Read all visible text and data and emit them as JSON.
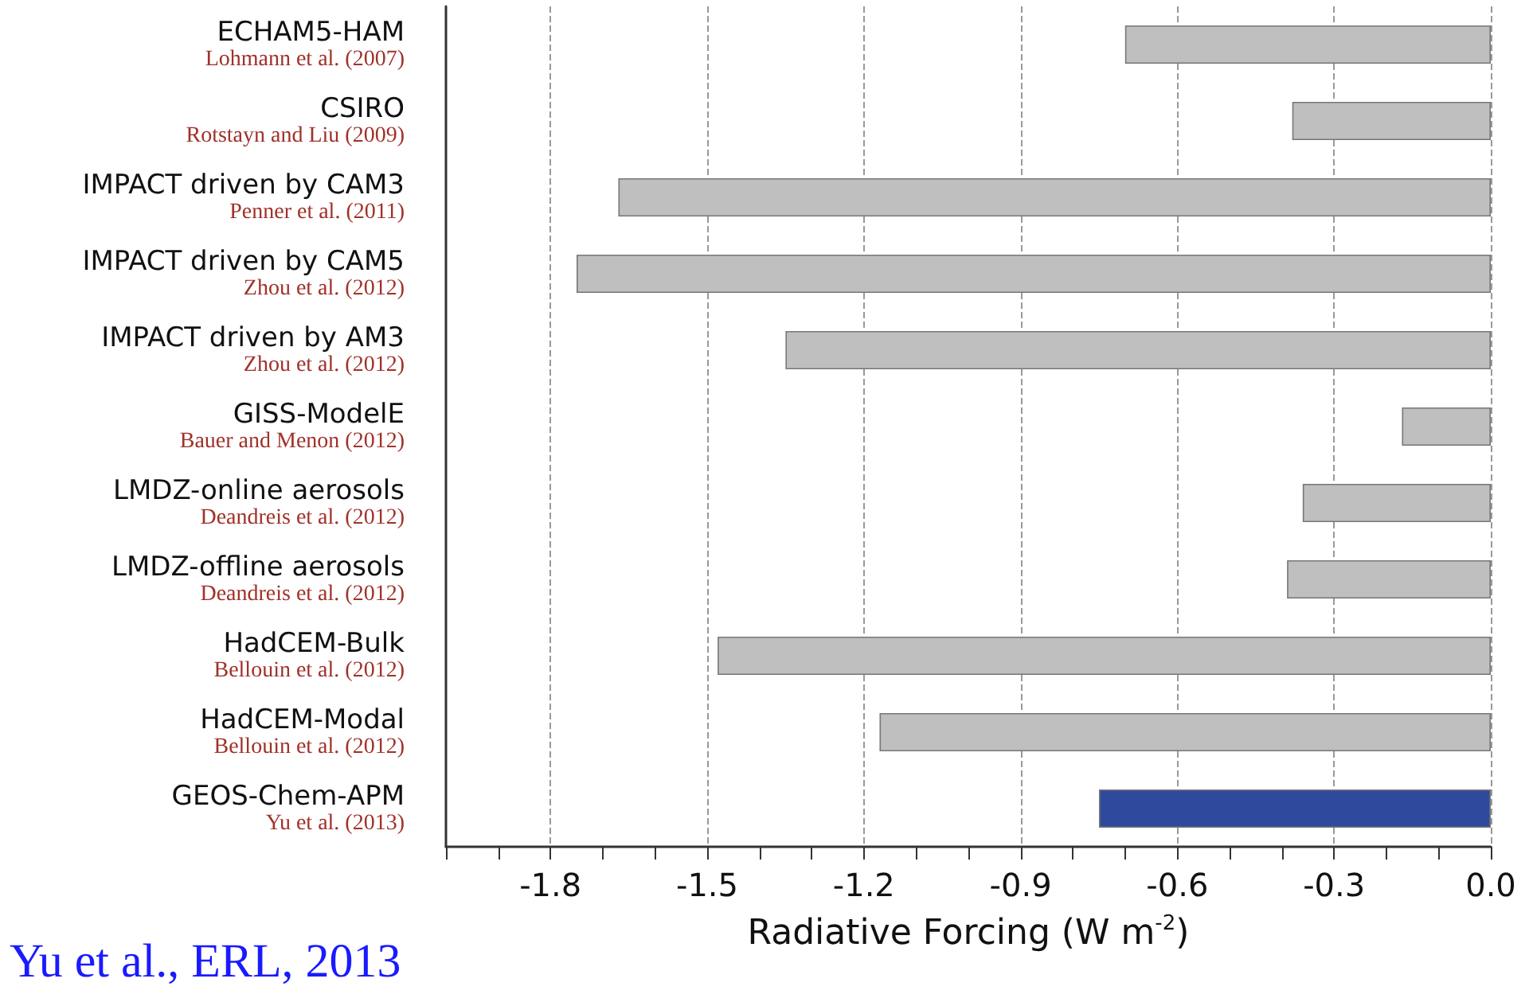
{
  "chart_data": {
    "type": "bar",
    "orientation": "horizontal",
    "xlabel": "Radiative Forcing (W m$^{-2}$)",
    "categories": [
      "ECHAM5-HAM\nLohmann et al. (2007)",
      "CSIRO\nRotstayn and Liu (2009)",
      "IMPACT driven by CAM3\nPenner et al. (2011)",
      "IMPACT driven by CAM5\nZhou et al. (2012)",
      "IMPACT driven by AM3\nZhou et al. (2012)",
      "GISS-ModelE\nBauer and Menon (2012)",
      "LMDZ-online aerosols\nDeandreis et al. (2012)",
      "LMDZ-offline aerosols\nDeandreis et al. (2012)",
      "HadCEM-Bulk\nBellouin et al. (2012)",
      "HadCEM-Modal\nBellouin et al. (2012)",
      "GEOS-Chem-APM\nYu et al. (2013)"
    ],
    "values": [
      -0.7,
      -0.38,
      -1.67,
      -1.75,
      -1.35,
      -0.17,
      -0.36,
      -0.39,
      -1.48,
      -1.17,
      -0.75
    ],
    "colors": [
      "#bfbfbf",
      "#bfbfbf",
      "#bfbfbf",
      "#bfbfbf",
      "#bfbfbf",
      "#bfbfbf",
      "#bfbfbf",
      "#bfbfbf",
      "#bfbfbf",
      "#bfbfbf",
      "#2f4a9c"
    ],
    "xlim": [
      -2.0,
      0
    ],
    "xticks": [
      {
        "value": -2.0,
        "label": null
      },
      {
        "value": -1.9,
        "label": null
      },
      -1.8,
      {
        "value": -1.7,
        "label": null
      },
      {
        "value": -1.6,
        "label": null
      },
      -1.5,
      {
        "value": -1.4,
        "label": null
      },
      {
        "value": -1.3,
        "label": null
      },
      -1.2,
      {
        "value": -1.1,
        "label": null
      },
      {
        "value": -1.0,
        "label": null
      },
      -0.9,
      {
        "value": -0.8,
        "label": null
      },
      {
        "value": -0.7,
        "label": null
      },
      -0.6,
      {
        "value": -0.5,
        "label": null
      },
      {
        "value": -0.4,
        "label": null
      },
      -0.3,
      {
        "value": -0.2,
        "label": null
      },
      {
        "value": -0.1,
        "label": null
      },
      {
        "value": 0,
        "label": "0.0"
      }
    ],
    "grid": "x",
    "annotations": [
      "Yu et al., ERL, 2013"
    ]
  }
}
